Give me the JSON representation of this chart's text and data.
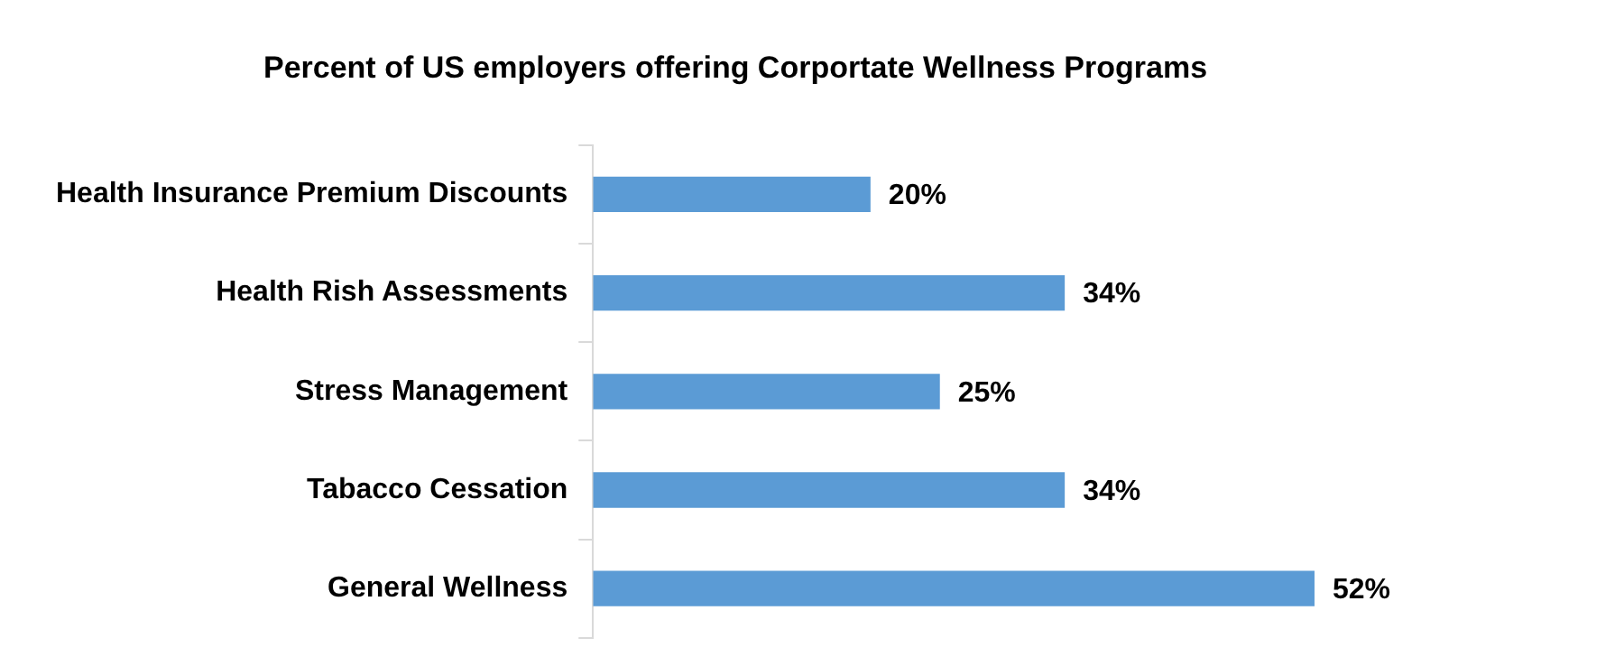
{
  "chart_data": {
    "type": "bar",
    "orientation": "horizontal",
    "title": "Percent of US employers offering Corportate Wellness Programs",
    "categories": [
      "Health Insurance Premium Discounts",
      "Health Rish Assessments",
      "Stress Management",
      "Tabacco Cessation",
      "General Wellness"
    ],
    "values": [
      20,
      34,
      25,
      34,
      52
    ],
    "value_labels": [
      "20%",
      "34%",
      "25%",
      "34%",
      "52%"
    ],
    "color": "#5b9bd5",
    "grid": false,
    "legend": false
  }
}
